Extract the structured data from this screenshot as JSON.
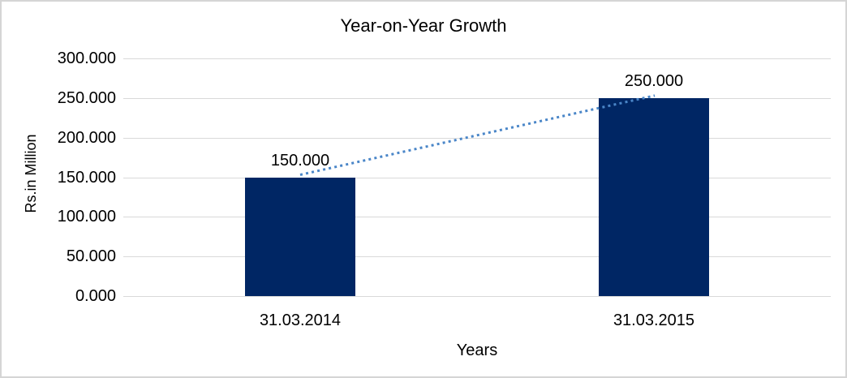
{
  "chart_data": {
    "type": "bar",
    "title": "Year-on-Year Growth",
    "categories": [
      "31.03.2014",
      "31.03.2015"
    ],
    "values": [
      150,
      250
    ],
    "data_labels": [
      "150.000",
      "250.000"
    ],
    "xlabel": "Years",
    "ylabel": "Rs.in Million",
    "ylim": [
      0,
      300
    ],
    "ytick_step": 50,
    "ytick_labels": [
      "0.000",
      "50.000",
      "100.000",
      "150.000",
      "200.000",
      "250.000",
      "300.000"
    ],
    "grid": true,
    "legend": "none",
    "trendline": {
      "type": "linear",
      "style": "dotted",
      "connects": [
        150,
        250
      ]
    },
    "colors": {
      "bar": "#002664",
      "gridline": "#d9d9d9",
      "trendline": "#4a86c8",
      "text": "#000000",
      "frame_border": "#d5d5d5",
      "background": "#ffffff"
    }
  }
}
